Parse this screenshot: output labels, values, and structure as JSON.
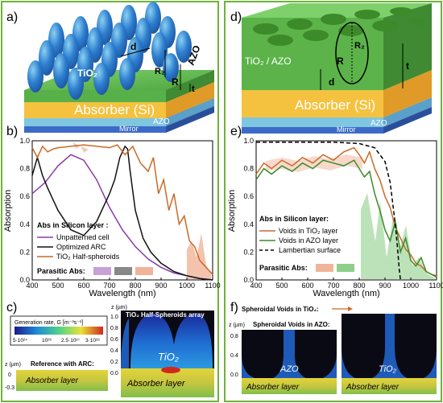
{
  "panel_labels": [
    "a)",
    "b)",
    "c)",
    "d)",
    "e)",
    "f)"
  ],
  "colors": {
    "frame": "#6fb23a",
    "purple": "#8a3aa8",
    "black": "#111111",
    "orange": "#c96a28",
    "dark_green": "#3d8a2a",
    "dashed": "#000000",
    "pink_fill": "#f0b49a",
    "green_fill": "#8fcf8a",
    "gray_fill": "#888888",
    "purple_fill": "#c9a0d8"
  },
  "schematic_a": {
    "labels": [
      "TiO₂",
      "AZO",
      "Absorber (Si)",
      "AZO",
      "Mirror",
      "d",
      "R₂",
      "R",
      "t"
    ]
  },
  "schematic_d": {
    "labels": [
      "TiO₂ / AZO",
      "Absorber (Si)",
      "AZO",
      "Mirror",
      "d",
      "R₂",
      "R",
      "t"
    ]
  },
  "chart_data": [
    {
      "panel": "b",
      "type": "line",
      "xlabel": "Wavelength (nm)",
      "ylabel": "Absorption",
      "xlim": [
        400,
        1100
      ],
      "ylim": [
        0.0,
        1.0
      ],
      "xticks": [
        400,
        500,
        600,
        700,
        800,
        900,
        1000,
        1100
      ],
      "yticks": [
        "0.0",
        "0.2",
        "0.4",
        "0.6",
        "0.8",
        "1.0"
      ],
      "legend_title": "Abs in Silicon layer :",
      "parasitic_label": "Parasitic Abs:",
      "series": [
        {
          "name": "Unpatterned cell",
          "color": "#8a3aa8",
          "x": [
            400,
            450,
            500,
            550,
            600,
            650,
            700,
            750,
            800,
            850,
            900,
            950,
            1000,
            1050,
            1100
          ],
          "y": [
            0.62,
            0.7,
            0.82,
            0.9,
            0.86,
            0.72,
            0.52,
            0.36,
            0.24,
            0.15,
            0.09,
            0.05,
            0.03,
            0.01,
            0.0
          ]
        },
        {
          "name": "Optimized ARC",
          "color": "#111111",
          "x": [
            400,
            420,
            440,
            460,
            500,
            550,
            600,
            650,
            700,
            720,
            740,
            760,
            770,
            780,
            800,
            830,
            860,
            900,
            950,
            1000,
            1050,
            1100
          ],
          "y": [
            0.75,
            0.88,
            0.75,
            0.66,
            0.5,
            0.36,
            0.32,
            0.42,
            0.62,
            0.72,
            0.88,
            0.96,
            0.94,
            0.78,
            0.5,
            0.3,
            0.2,
            0.12,
            0.06,
            0.03,
            0.01,
            0.0
          ]
        },
        {
          "name": "TiO₂ Half-spheroids",
          "color": "#c96a28",
          "x": [
            400,
            420,
            440,
            460,
            480,
            500,
            550,
            600,
            650,
            700,
            730,
            760,
            790,
            820,
            850,
            870,
            890,
            910,
            930,
            950,
            970,
            990,
            1010,
            1030,
            1050,
            1070,
            1090,
            1100
          ],
          "y": [
            0.95,
            0.88,
            0.96,
            0.92,
            0.94,
            0.95,
            0.96,
            0.97,
            0.96,
            0.95,
            0.97,
            0.9,
            0.96,
            0.84,
            0.78,
            0.88,
            0.62,
            0.72,
            0.5,
            0.62,
            0.4,
            0.46,
            0.28,
            0.24,
            0.14,
            0.1,
            0.06,
            0.04
          ]
        }
      ]
    },
    {
      "panel": "e",
      "type": "line",
      "xlabel": "Wavelength (nm)",
      "ylabel": "Absorption",
      "xlim": [
        400,
        1100
      ],
      "ylim": [
        0.0,
        1.0
      ],
      "xticks": [
        400,
        500,
        600,
        700,
        800,
        900,
        1000,
        1100
      ],
      "yticks": [
        "0.0",
        "0.2",
        "0.4",
        "0.6",
        "0.8",
        "1.0"
      ],
      "legend_title": "Abs in Silicon layer:",
      "parasitic_label": "Parasitic Abs:",
      "series": [
        {
          "name": "Voids in TiO₂ layer",
          "color": "#c96a28",
          "x": [
            400,
            430,
            460,
            500,
            540,
            580,
            620,
            660,
            700,
            740,
            780,
            800,
            820,
            840,
            860,
            880,
            900,
            920,
            940,
            960,
            980,
            1000,
            1020,
            1040,
            1060,
            1080,
            1100
          ],
          "y": [
            0.76,
            0.84,
            0.8,
            0.86,
            0.82,
            0.88,
            0.84,
            0.9,
            0.86,
            0.92,
            0.95,
            0.9,
            0.84,
            0.92,
            0.8,
            0.72,
            0.6,
            0.52,
            0.38,
            0.3,
            0.22,
            0.18,
            0.12,
            0.1,
            0.06,
            0.04,
            0.03
          ]
        },
        {
          "name": "Voids in AZO layer",
          "color": "#3d8a2a",
          "x": [
            400,
            430,
            460,
            500,
            540,
            580,
            620,
            660,
            700,
            740,
            780,
            800,
            820,
            840,
            860,
            880,
            900,
            920,
            940,
            960,
            980,
            1000,
            1020,
            1040,
            1060,
            1080,
            1100
          ],
          "y": [
            0.72,
            0.8,
            0.76,
            0.82,
            0.78,
            0.84,
            0.8,
            0.86,
            0.84,
            0.82,
            0.86,
            0.8,
            0.74,
            0.78,
            0.62,
            0.5,
            0.36,
            0.28,
            0.42,
            0.2,
            0.3,
            0.14,
            0.1,
            0.16,
            0.06,
            0.04,
            0.02
          ]
        },
        {
          "name": "Lambertian surface",
          "color": "#000000",
          "dashed": true,
          "x": [
            400,
            500,
            600,
            700,
            800,
            860,
            900,
            920,
            940,
            950,
            955,
            960
          ],
          "y": [
            0.99,
            0.99,
            0.99,
            0.99,
            0.98,
            0.95,
            0.85,
            0.7,
            0.4,
            0.2,
            0.08,
            0.0
          ]
        }
      ]
    }
  ],
  "panel_c": {
    "colorbar_title": "Generation rate, G [m⁻³s⁻¹]",
    "colorbar_ticks": [
      "5·10²⁴",
      "10²⁶",
      "2.5·10²⁷",
      "3·10²⁸"
    ],
    "ref_label": "Reference with ARC:",
    "ref_axis": "z (µm)",
    "ref_ticks": [
      "0",
      "-0.3"
    ],
    "array_title": "TiO₂ Half-Spheroids array",
    "array_axis": "z (µm)",
    "array_ticks": [
      "1.0",
      "0.8",
      "0.6",
      "0.4",
      "0.2",
      "0.0"
    ],
    "tio2_label": "TiO₂",
    "absorber_label": "Absorber layer",
    "ref_absorber_label": "Absorber layer"
  },
  "panel_f": {
    "tio2_voids_label": "Spheroidal Voids in TiO₂:",
    "azo_voids_label": "Spheroidal Voids in AZO:",
    "axis": "z (µm)",
    "ticks": [
      "0.8",
      "0.4",
      "0.0"
    ],
    "azo_label": "AZO",
    "tio2_label": "TiO₂",
    "absorber_left": "Absorber layer",
    "absorber_right": "Absorber layer"
  }
}
